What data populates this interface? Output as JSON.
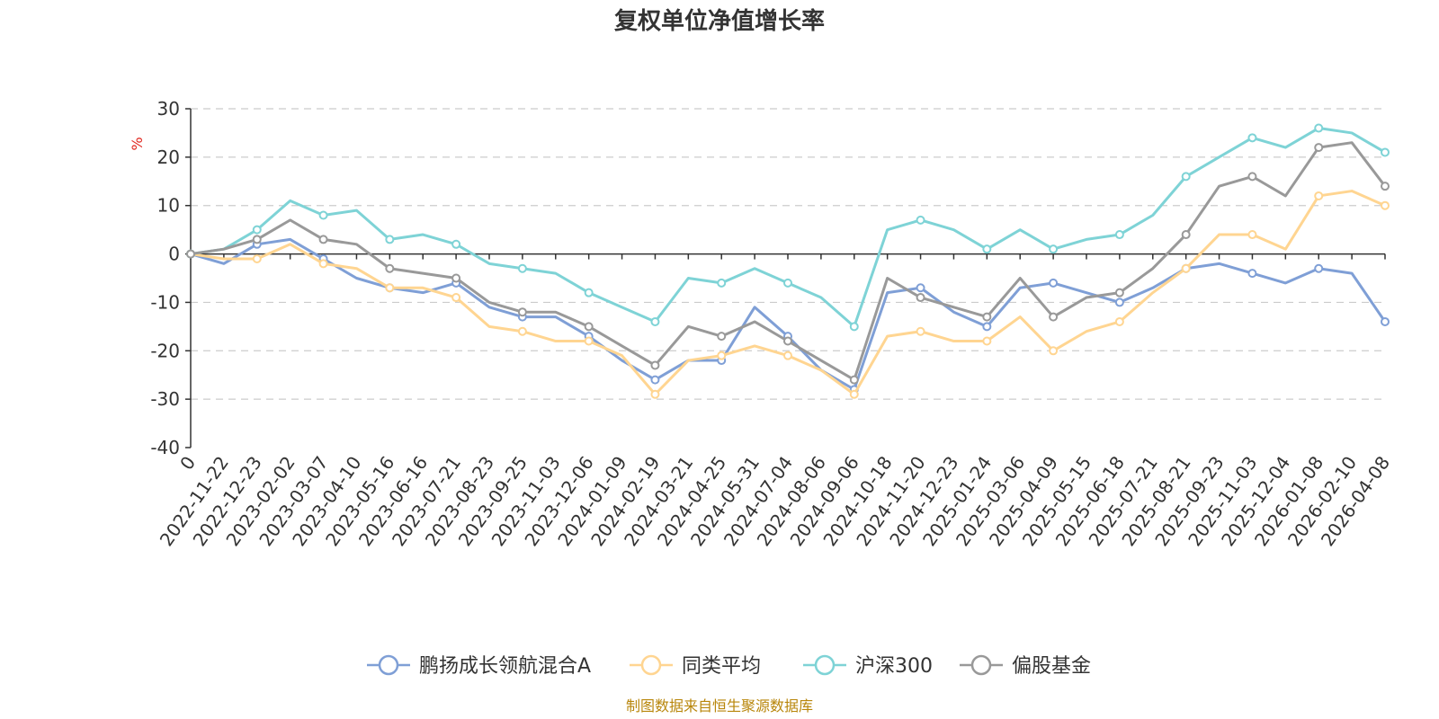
{
  "colors": {
    "series": [
      "#7f9fd6",
      "#ffd591",
      "#7ed3d6",
      "#999999"
    ],
    "grid": "#cccccc",
    "axis": "#333333",
    "unit": "#e0261e",
    "footer": "#b8860b"
  },
  "footer": "制图数据来自恒生聚源数据库",
  "chart_data": {
    "type": "line",
    "title": "复权单位净值增长率",
    "ylabel": "%",
    "xlabel": "",
    "ylim": [
      -40,
      30
    ],
    "yticks": [
      30,
      20,
      10,
      0,
      -10,
      -20,
      -30,
      -40
    ],
    "grid": true,
    "legend_position": "bottom",
    "x_tick_labels": [
      "0",
      "2022-11-22",
      "2022-12-23",
      "2023-02-02",
      "2023-03-07",
      "2023-04-10",
      "2023-05-16",
      "2023-06-16",
      "2023-07-21",
      "2023-08-23",
      "2023-09-25",
      "2023-11-03",
      "2023-12-06",
      "2024-01-09",
      "2024-02-19",
      "2024-03-21",
      "2024-04-25",
      "2024-05-31",
      "2024-07-04",
      "2024-08-06",
      "2024-09-06",
      "2024-10-18",
      "2024-11-20",
      "2024-12-23",
      "2025-01-24",
      "2025-03-06",
      "2025-04-09",
      "2025-05-15",
      "2025-06-18",
      "2025-07-21",
      "2025-08-21",
      "2025-09-23",
      "2025-11-03",
      "2025-12-04",
      "2026-01-08",
      "2026-02-10",
      "2026-04-08"
    ],
    "series": [
      {
        "name": "鹏扬成长领航混合A",
        "values": [
          0,
          -2,
          2,
          3,
          -1,
          -5,
          -7,
          -8,
          -6,
          -11,
          -13,
          -13,
          -17,
          -22,
          -26,
          -22,
          -22,
          -11,
          -17,
          -24,
          -28,
          -8,
          -7,
          -12,
          -15,
          -7,
          -6,
          -8,
          -10,
          -7,
          -3,
          -2,
          -4,
          -6,
          -3,
          -4,
          -14
        ]
      },
      {
        "name": "同类平均",
        "values": [
          0,
          -1,
          -1,
          2,
          -2,
          -3,
          -7,
          -7,
          -9,
          -15,
          -16,
          -18,
          -18,
          -21,
          -29,
          -22,
          -21,
          -19,
          -21,
          -24,
          -29,
          -17,
          -16,
          -18,
          -18,
          -13,
          -20,
          -16,
          -14,
          -8,
          -3,
          4,
          4,
          1,
          12,
          13,
          10
        ]
      },
      {
        "name": "沪深300",
        "values": [
          0,
          1,
          5,
          11,
          8,
          9,
          3,
          4,
          2,
          -2,
          -3,
          -4,
          -8,
          -11,
          -14,
          -5,
          -6,
          -3,
          -6,
          -9,
          -15,
          5,
          7,
          5,
          1,
          5,
          1,
          3,
          4,
          8,
          16,
          20,
          24,
          22,
          26,
          25,
          21
        ]
      },
      {
        "name": "偏股基金",
        "values": [
          0,
          1,
          3,
          7,
          3,
          2,
          -3,
          -4,
          -5,
          -10,
          -12,
          -12,
          -15,
          -19,
          -23,
          -15,
          -17,
          -14,
          -18,
          -22,
          -26,
          -5,
          -9,
          -11,
          -13,
          -5,
          -13,
          -9,
          -8,
          -3,
          4,
          14,
          16,
          12,
          22,
          23,
          14
        ]
      }
    ]
  }
}
